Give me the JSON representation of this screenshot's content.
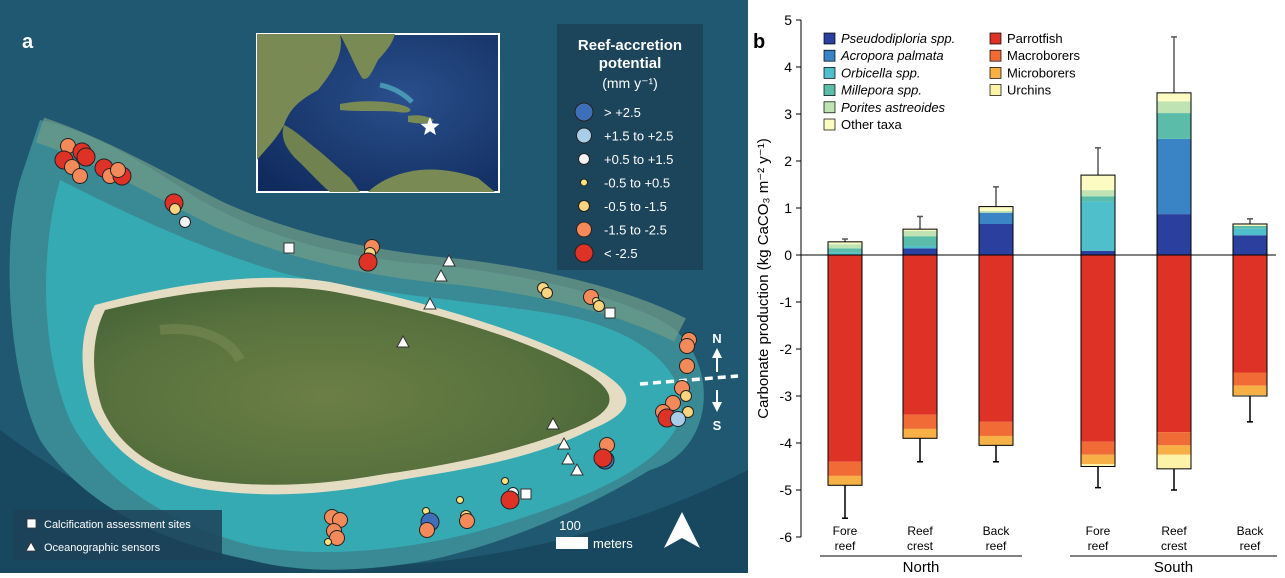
{
  "panels": {
    "a_label": "a",
    "b_label": "b"
  },
  "map": {
    "legend": {
      "title_line1": "Reef-accretion",
      "title_line2": "potential",
      "units": "(mm y⁻¹)",
      "classes": [
        {
          "label": "> +2.5",
          "color": "#3f6fb8",
          "size": "large"
        },
        {
          "label": "+1.5 to +2.5",
          "color": "#a8cde8",
          "size": "medium"
        },
        {
          "label": "+0.5 to +1.5",
          "color": "#f2f2f2",
          "size": "small"
        },
        {
          "label": "-0.5 to +0.5",
          "color": "#fbe27a",
          "size": "tiny"
        },
        {
          "label": "-0.5 to -1.5",
          "color": "#fcd47d",
          "size": "small"
        },
        {
          "label": "-1.5 to -2.5",
          "color": "#f4895a",
          "size": "medium"
        },
        {
          "label": "< -2.5",
          "color": "#de3226",
          "size": "large"
        }
      ]
    },
    "site_legend": {
      "calcification": "Calcification assessment sites",
      "sensors": "Oceanographic sensors"
    },
    "scale_bar": {
      "value": "100",
      "unit": "meters"
    },
    "compass": {
      "north": "N",
      "south": "S"
    },
    "colors": {
      "sea": "#1f5870",
      "lagoon": "#33a6b0",
      "reef": "#5a8a80",
      "island": "#5c7440",
      "sand": "#e5dcc4"
    }
  },
  "chart_data": {
    "type": "bar",
    "stacked": true,
    "ylabel": "Carbonate production (kg CaCO₃ m⁻² y⁻¹)",
    "ylim": [
      -6,
      5
    ],
    "yticks": [
      "5",
      "4",
      "3",
      "2",
      "1",
      "0",
      "-1",
      "-2",
      "-3",
      "-4",
      "-5",
      "-6"
    ],
    "categories": [
      {
        "line1": "Fore",
        "line2": "reef"
      },
      {
        "line1": "Reef",
        "line2": "crest"
      },
      {
        "line1": "Back",
        "line2": "reef"
      },
      {
        "line1": "Fore",
        "line2": "reef"
      },
      {
        "line1": "Reef",
        "line2": "crest"
      },
      {
        "line1": "Back",
        "line2": "reef"
      }
    ],
    "groups": [
      {
        "label": "North"
      },
      {
        "label": "South"
      }
    ],
    "positive_series": [
      {
        "name": "Pseudodiploria spp.",
        "color": "#2b3f9e",
        "values": [
          0.0,
          0.14,
          0.66,
          0.09,
          0.87,
          0.42
        ]
      },
      {
        "name": "Acropora palmata",
        "color": "#3a83c4",
        "values": [
          0.0,
          0.0,
          0.24,
          0.0,
          1.6,
          0.0
        ]
      },
      {
        "name": "Orbicella spp.",
        "color": "#4fbfcb",
        "values": [
          0.05,
          0.05,
          0.0,
          1.05,
          0.0,
          0.14
        ]
      },
      {
        "name": "Millepora spp.",
        "color": "#5cbcaa",
        "values": [
          0.09,
          0.21,
          0.0,
          0.11,
          0.55,
          0.06
        ]
      },
      {
        "name": "Porites astreoides",
        "color": "#bfe3b2",
        "values": [
          0.09,
          0.11,
          0.04,
          0.13,
          0.25,
          0.0
        ]
      },
      {
        "name": "Other taxa",
        "color": "#fbfbc2",
        "values": [
          0.05,
          0.04,
          0.09,
          0.32,
          0.18,
          0.04
        ]
      }
    ],
    "negative_series": [
      {
        "name": "Parrotfish",
        "color": "#de3226",
        "values": [
          -4.4,
          -3.4,
          -3.55,
          -3.97,
          -3.77,
          -2.5
        ]
      },
      {
        "name": "Macroborers",
        "color": "#f06b35",
        "values": [
          -0.3,
          -0.3,
          -0.3,
          -0.28,
          -0.28,
          -0.28
        ]
      },
      {
        "name": "Microborers",
        "color": "#f7b045",
        "values": [
          -0.2,
          -0.2,
          -0.2,
          -0.2,
          -0.2,
          -0.2
        ]
      },
      {
        "name": "Urchins",
        "color": "#fdf3a8",
        "values": [
          0.0,
          0.0,
          0.0,
          -0.05,
          -0.3,
          -0.02
        ]
      }
    ],
    "error_up": [
      0.34,
      0.82,
      1.45,
      2.28,
      4.64,
      0.77
    ],
    "error_down": [
      -5.6,
      -4.4,
      -4.4,
      -4.95,
      -5.0,
      -3.55
    ],
    "legend_italic": [
      true,
      true,
      true,
      true,
      true,
      false
    ]
  }
}
